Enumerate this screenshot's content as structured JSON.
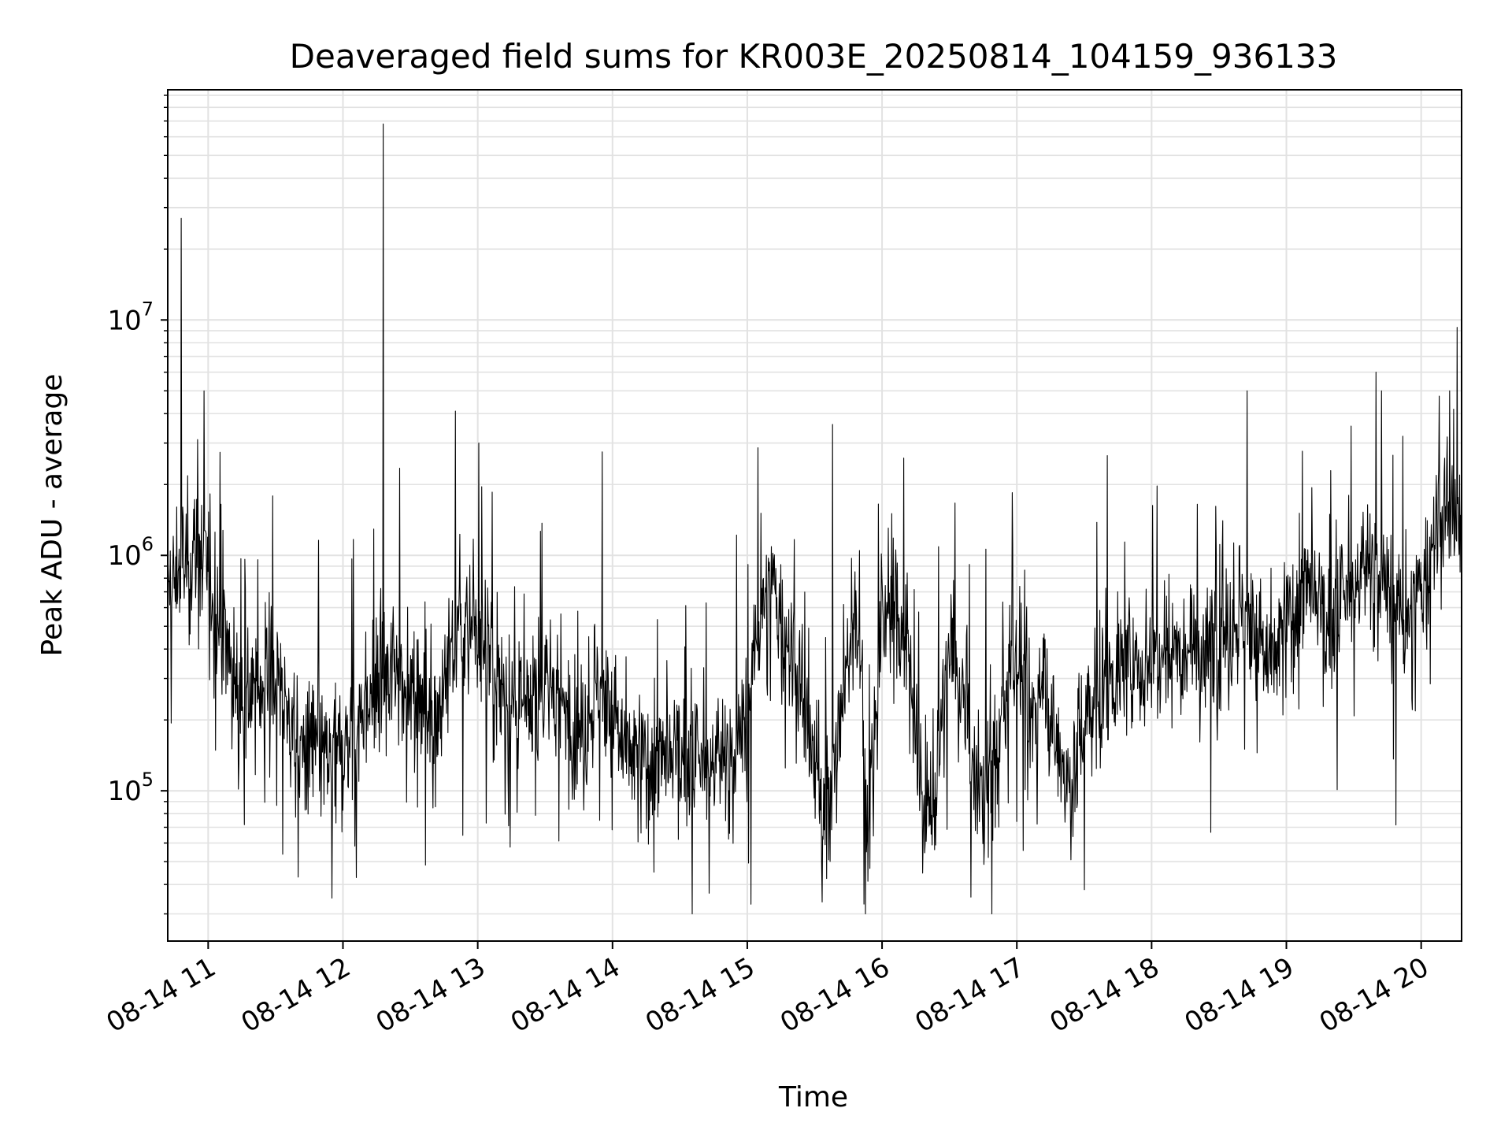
{
  "chart_data": {
    "type": "line",
    "title": "Deaveraged field sums for KR003E_20250814_104159_936133",
    "xlabel": "Time",
    "ylabel": "Peak ADU - average",
    "x_range": [
      "2025-08-14 10:42",
      "2025-08-14 20:18"
    ],
    "y_range": [
      23000,
      95000000
    ],
    "y_scale": "log",
    "grid": true,
    "line_color": "#000000",
    "x_ticks": [
      {
        "time": "2025-08-14 11:00",
        "label": "08-14 11"
      },
      {
        "time": "2025-08-14 12:00",
        "label": "08-14 12"
      },
      {
        "time": "2025-08-14 13:00",
        "label": "08-14 13"
      },
      {
        "time": "2025-08-14 14:00",
        "label": "08-14 14"
      },
      {
        "time": "2025-08-14 15:00",
        "label": "08-14 15"
      },
      {
        "time": "2025-08-14 16:00",
        "label": "08-14 16"
      },
      {
        "time": "2025-08-14 17:00",
        "label": "08-14 17"
      },
      {
        "time": "2025-08-14 18:00",
        "label": "08-14 18"
      },
      {
        "time": "2025-08-14 19:00",
        "label": "08-14 19"
      },
      {
        "time": "2025-08-14 20:00",
        "label": "08-14 20"
      }
    ],
    "y_ticks": [
      {
        "value": 100000,
        "base": "10",
        "exp": "5"
      },
      {
        "value": 1000000,
        "base": "10",
        "exp": "6"
      },
      {
        "value": 10000000,
        "base": "10",
        "exp": "7"
      }
    ],
    "series": [
      {
        "x": [
          "10:42",
          "10:48",
          "10:54",
          "11:00",
          "11:06",
          "11:12",
          "11:18",
          "11:24",
          "11:30",
          "11:36",
          "11:42",
          "11:48",
          "11:54",
          "12:00",
          "12:06",
          "12:12",
          "12:18",
          "12:24",
          "12:30",
          "12:36",
          "12:42",
          "12:48",
          "12:54",
          "13:00",
          "13:06",
          "13:12",
          "13:18",
          "13:24",
          "13:30",
          "13:36",
          "13:42",
          "13:48",
          "13:54",
          "14:00",
          "14:06",
          "14:12",
          "14:18",
          "14:24",
          "14:30",
          "14:36",
          "14:42",
          "14:48",
          "14:54",
          "15:00",
          "15:06",
          "15:12",
          "15:18",
          "15:24",
          "15:30",
          "15:36",
          "15:42",
          "15:48",
          "15:54",
          "16:00",
          "16:06",
          "16:12",
          "16:18",
          "16:24",
          "16:30",
          "16:36",
          "16:42",
          "16:48",
          "16:54",
          "17:00",
          "17:06",
          "17:12",
          "17:18",
          "17:24",
          "17:30",
          "17:36",
          "17:42",
          "17:48",
          "17:54",
          "18:00",
          "18:06",
          "18:12",
          "18:18",
          "18:24",
          "18:30",
          "18:36",
          "18:42",
          "18:48",
          "18:54",
          "19:00",
          "19:06",
          "19:12",
          "19:18",
          "19:24",
          "19:30",
          "19:36",
          "19:42",
          "19:48",
          "19:54",
          "20:00",
          "20:06",
          "20:12",
          "20:18"
        ],
        "y": [
          650000,
          900000,
          1000000,
          900000,
          500000,
          300000,
          250000,
          280000,
          350000,
          200000,
          140000,
          160000,
          120000,
          150000,
          200000,
          250000,
          300000,
          350000,
          280000,
          250000,
          200000,
          400000,
          450000,
          500000,
          350000,
          250000,
          200000,
          220000,
          300000,
          250000,
          200000,
          180000,
          300000,
          200000,
          150000,
          130000,
          140000,
          120000,
          150000,
          130000,
          120000,
          150000,
          140000,
          200000,
          600000,
          700000,
          400000,
          250000,
          120000,
          90000,
          200000,
          700000,
          80000,
          500000,
          600000,
          400000,
          90000,
          100000,
          400000,
          250000,
          90000,
          120000,
          200000,
          400000,
          200000,
          300000,
          150000,
          100000,
          200000,
          250000,
          300000,
          350000,
          300000,
          400000,
          450000,
          400000,
          500000,
          350000,
          450000,
          500000,
          600000,
          400000,
          350000,
          500000,
          700000,
          650000,
          500000,
          600000,
          700000,
          1000000,
          800000,
          600000,
          500000,
          700000,
          1200000,
          1500000,
          1300000
        ],
        "peaks": [
          {
            "t": "10:48",
            "v": 27000000
          },
          {
            "t": "12:18",
            "v": 68000000
          },
          {
            "t": "12:50",
            "v": 4100000
          },
          {
            "t": "15:38",
            "v": 3600000
          },
          {
            "t": "19:40",
            "v": 6000000
          },
          {
            "t": "20:16",
            "v": 9300000
          }
        ],
        "troughs": [
          {
            "t": "11:40",
            "v": 43000
          },
          {
            "t": "11:55",
            "v": 35000
          },
          {
            "t": "15:52",
            "v": 33000
          },
          {
            "t": "17:30",
            "v": 38000
          }
        ]
      }
    ]
  }
}
